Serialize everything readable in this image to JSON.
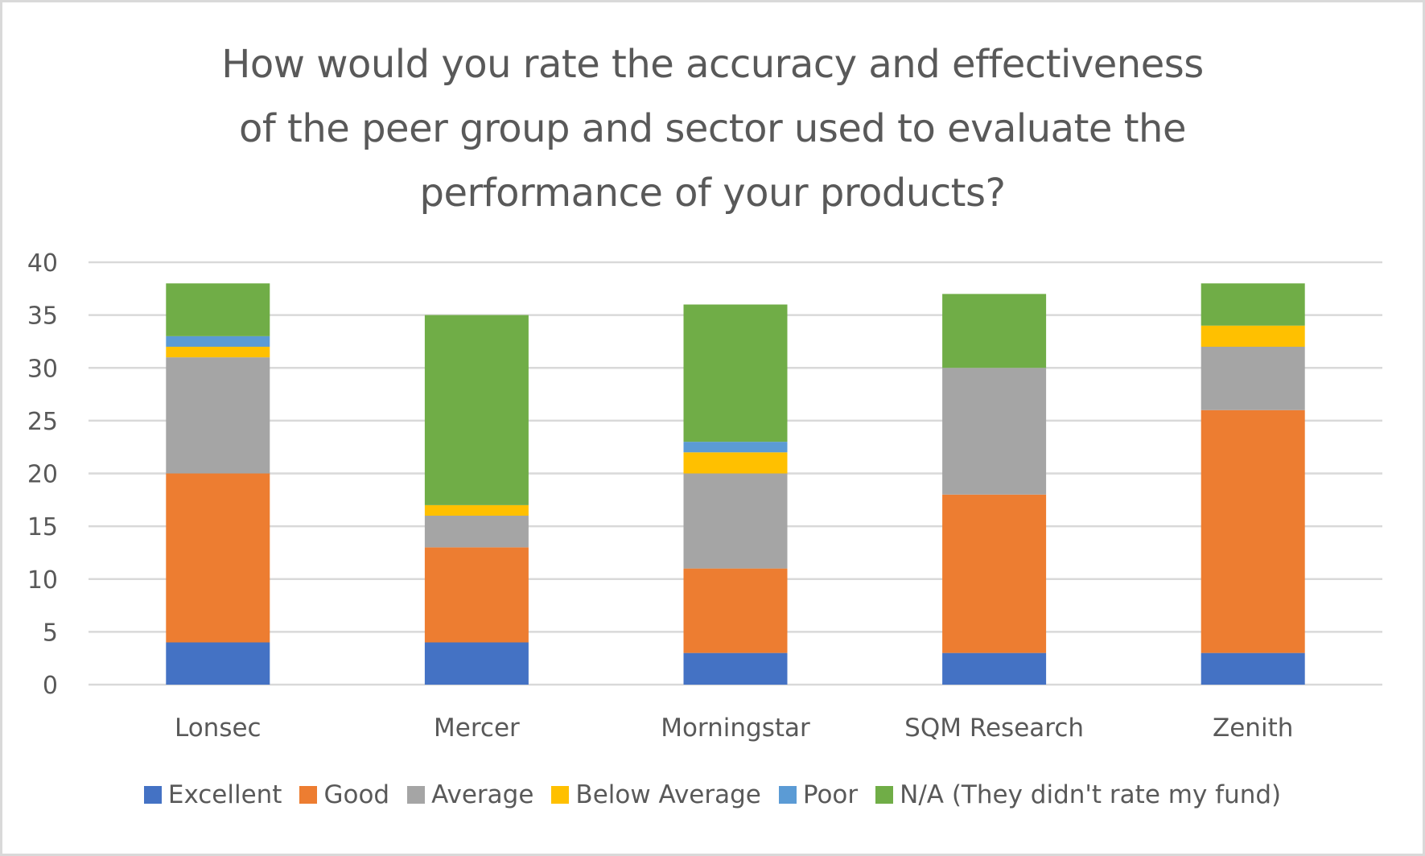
{
  "chart_data": {
    "type": "bar",
    "stacked": true,
    "title": "How would you rate the accuracy and effectiveness\nof the peer group and sector used to evaluate the\nperformance of your products?",
    "xlabel": "",
    "ylabel": "",
    "ylim": [
      0,
      40
    ],
    "yticks": [
      0,
      5,
      10,
      15,
      20,
      25,
      30,
      35,
      40
    ],
    "grid": "horizontal",
    "legend_position": "bottom",
    "categories": [
      "Lonsec",
      "Mercer",
      "Morningstar",
      "SQM Research",
      "Zenith"
    ],
    "series": [
      {
        "name": "Excellent",
        "color": "#4472c4",
        "values": [
          4,
          4,
          3,
          3,
          3
        ]
      },
      {
        "name": "Good",
        "color": "#ed7d31",
        "values": [
          16,
          9,
          8,
          15,
          23
        ]
      },
      {
        "name": "Average",
        "color": "#a5a5a5",
        "values": [
          11,
          3,
          9,
          12,
          6
        ]
      },
      {
        "name": "Below Average",
        "color": "#ffc000",
        "values": [
          1,
          1,
          2,
          0,
          2
        ]
      },
      {
        "name": "Poor",
        "color": "#5b9bd5",
        "values": [
          1,
          0,
          1,
          0,
          0
        ]
      },
      {
        "name": "N/A (They didn't rate my fund)",
        "color": "#70ad47",
        "values": [
          5,
          18,
          13,
          7,
          4
        ]
      }
    ]
  }
}
